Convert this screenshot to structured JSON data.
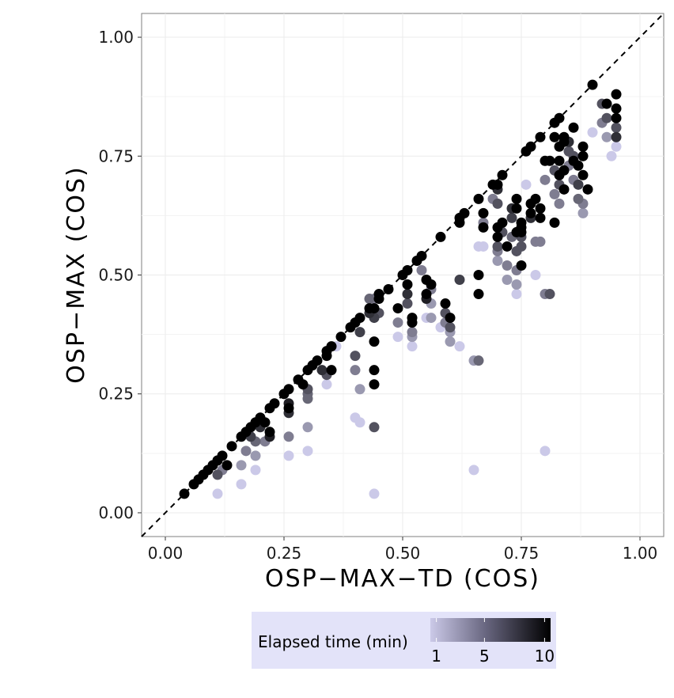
{
  "chart_data": {
    "type": "scatter",
    "xlabel": "OSP−MAX−TD (COS)",
    "ylabel": "OSP−MAX (COS)",
    "xlim": [
      -0.05,
      1.05
    ],
    "ylim": [
      -0.05,
      1.05
    ],
    "x_ticks": [
      "0.00",
      "0.25",
      "0.50",
      "0.75",
      "1.00"
    ],
    "y_ticks": [
      "0.00",
      "0.25",
      "0.50",
      "0.75",
      "1.00"
    ],
    "x_tick_values": [
      0,
      0.25,
      0.5,
      0.75,
      1.0
    ],
    "y_tick_values": [
      0,
      0.25,
      0.5,
      0.75,
      1.0
    ],
    "grid": true,
    "reference_line": "y = x (dashed)",
    "legend": {
      "title": "Elapsed time (min)",
      "position": "bottom",
      "ticks": [
        "1",
        "5",
        "10"
      ],
      "tick_values": [
        1,
        5,
        10
      ],
      "range": [
        0.5,
        10.5
      ],
      "color_low": "#cbc9e8",
      "color_high": "#000000",
      "background": "#e3e3f9"
    },
    "colors": {
      "low": "#cbc9e8",
      "high": "#000000",
      "panel_border": "#7f7f7f",
      "grid": "#ebebeb"
    },
    "points_format": "[x, y, elapsed_time_min]",
    "points": [
      [
        0.04,
        0.04,
        10
      ],
      [
        0.06,
        0.06,
        10
      ],
      [
        0.07,
        0.07,
        10
      ],
      [
        0.08,
        0.08,
        10
      ],
      [
        0.09,
        0.09,
        10
      ],
      [
        0.1,
        0.1,
        10
      ],
      [
        0.11,
        0.11,
        10
      ],
      [
        0.12,
        0.12,
        10
      ],
      [
        0.13,
        0.1,
        10
      ],
      [
        0.11,
        0.08,
        5
      ],
      [
        0.12,
        0.09,
        3
      ],
      [
        0.11,
        0.04,
        1
      ],
      [
        0.14,
        0.14,
        10
      ],
      [
        0.16,
        0.16,
        10
      ],
      [
        0.17,
        0.17,
        10
      ],
      [
        0.18,
        0.18,
        10
      ],
      [
        0.19,
        0.19,
        10
      ],
      [
        0.2,
        0.2,
        10
      ],
      [
        0.21,
        0.19,
        10
      ],
      [
        0.22,
        0.22,
        10
      ],
      [
        0.23,
        0.23,
        10
      ],
      [
        0.18,
        0.16,
        6
      ],
      [
        0.2,
        0.18,
        7
      ],
      [
        0.22,
        0.17,
        10
      ],
      [
        0.22,
        0.16,
        8
      ],
      [
        0.21,
        0.15,
        3
      ],
      [
        0.19,
        0.15,
        4
      ],
      [
        0.17,
        0.13,
        3
      ],
      [
        0.19,
        0.12,
        2
      ],
      [
        0.16,
        0.1,
        2
      ],
      [
        0.19,
        0.09,
        1
      ],
      [
        0.16,
        0.06,
        1
      ],
      [
        0.25,
        0.25,
        10
      ],
      [
        0.26,
        0.26,
        10
      ],
      [
        0.26,
        0.23,
        8
      ],
      [
        0.26,
        0.22,
        10
      ],
      [
        0.26,
        0.21,
        7
      ],
      [
        0.26,
        0.16,
        3
      ],
      [
        0.26,
        0.12,
        1
      ],
      [
        0.28,
        0.28,
        10
      ],
      [
        0.29,
        0.27,
        10
      ],
      [
        0.3,
        0.3,
        10
      ],
      [
        0.3,
        0.26,
        5
      ],
      [
        0.3,
        0.25,
        4
      ],
      [
        0.3,
        0.24,
        4
      ],
      [
        0.3,
        0.18,
        2
      ],
      [
        0.3,
        0.13,
        1
      ],
      [
        0.31,
        0.31,
        10
      ],
      [
        0.32,
        0.32,
        10
      ],
      [
        0.33,
        0.3,
        7
      ],
      [
        0.34,
        0.34,
        10
      ],
      [
        0.34,
        0.33,
        10
      ],
      [
        0.34,
        0.29,
        5
      ],
      [
        0.34,
        0.27,
        1
      ],
      [
        0.35,
        0.35,
        10
      ],
      [
        0.35,
        0.3,
        10
      ],
      [
        0.37,
        0.37,
        10
      ],
      [
        0.36,
        0.35,
        1
      ],
      [
        0.39,
        0.39,
        10
      ],
      [
        0.4,
        0.4,
        10
      ],
      [
        0.41,
        0.41,
        10
      ],
      [
        0.41,
        0.38,
        6
      ],
      [
        0.4,
        0.33,
        5
      ],
      [
        0.4,
        0.3,
        3
      ],
      [
        0.41,
        0.26,
        2
      ],
      [
        0.4,
        0.2,
        1
      ],
      [
        0.41,
        0.19,
        1
      ],
      [
        0.43,
        0.43,
        10
      ],
      [
        0.43,
        0.45,
        4
      ],
      [
        0.43,
        0.42,
        7
      ],
      [
        0.44,
        0.45,
        3
      ],
      [
        0.44,
        0.43,
        10
      ],
      [
        0.44,
        0.41,
        6
      ],
      [
        0.44,
        0.36,
        10
      ],
      [
        0.44,
        0.3,
        10
      ],
      [
        0.44,
        0.27,
        10
      ],
      [
        0.44,
        0.18,
        5
      ],
      [
        0.44,
        0.04,
        1
      ],
      [
        0.45,
        0.45,
        10
      ],
      [
        0.45,
        0.46,
        10
      ],
      [
        0.45,
        0.42,
        5
      ],
      [
        0.47,
        0.47,
        10
      ],
      [
        0.49,
        0.43,
        10
      ],
      [
        0.49,
        0.4,
        3
      ],
      [
        0.49,
        0.37,
        1
      ],
      [
        0.5,
        0.5,
        10
      ],
      [
        0.51,
        0.51,
        10
      ],
      [
        0.51,
        0.48,
        10
      ],
      [
        0.51,
        0.46,
        7
      ],
      [
        0.51,
        0.44,
        5
      ],
      [
        0.52,
        0.41,
        10
      ],
      [
        0.52,
        0.4,
        10
      ],
      [
        0.52,
        0.38,
        3
      ],
      [
        0.52,
        0.37,
        2
      ],
      [
        0.52,
        0.35,
        1
      ],
      [
        0.53,
        0.53,
        10
      ],
      [
        0.54,
        0.54,
        10
      ],
      [
        0.54,
        0.51,
        3
      ],
      [
        0.55,
        0.49,
        10
      ],
      [
        0.55,
        0.46,
        10
      ],
      [
        0.55,
        0.45,
        8
      ],
      [
        0.55,
        0.41,
        1
      ],
      [
        0.56,
        0.48,
        10
      ],
      [
        0.56,
        0.47,
        3
      ],
      [
        0.56,
        0.44,
        2
      ],
      [
        0.56,
        0.41,
        2
      ],
      [
        0.58,
        0.58,
        10
      ],
      [
        0.58,
        0.39,
        1
      ],
      [
        0.59,
        0.44,
        10
      ],
      [
        0.59,
        0.42,
        5
      ],
      [
        0.59,
        0.4,
        3
      ],
      [
        0.6,
        0.41,
        10
      ],
      [
        0.6,
        0.39,
        5
      ],
      [
        0.6,
        0.38,
        2
      ],
      [
        0.6,
        0.36,
        2
      ],
      [
        0.62,
        0.61,
        10
      ],
      [
        0.62,
        0.62,
        10
      ],
      [
        0.62,
        0.49,
        6
      ],
      [
        0.62,
        0.35,
        1
      ],
      [
        0.63,
        0.63,
        10
      ],
      [
        0.65,
        0.32,
        2
      ],
      [
        0.65,
        0.09,
        1
      ],
      [
        0.66,
        0.66,
        10
      ],
      [
        0.66,
        0.5,
        10
      ],
      [
        0.66,
        0.46,
        10
      ],
      [
        0.66,
        0.56,
        1
      ],
      [
        0.66,
        0.32,
        4
      ],
      [
        0.67,
        0.63,
        10
      ],
      [
        0.67,
        0.6,
        10
      ],
      [
        0.67,
        0.56,
        1
      ],
      [
        0.67,
        0.61,
        3
      ],
      [
        0.69,
        0.69,
        10
      ],
      [
        0.69,
        0.66,
        3
      ],
      [
        0.7,
        0.69,
        10
      ],
      [
        0.7,
        0.68,
        7
      ],
      [
        0.7,
        0.65,
        5
      ],
      [
        0.7,
        0.6,
        10
      ],
      [
        0.7,
        0.58,
        10
      ],
      [
        0.7,
        0.56,
        5
      ],
      [
        0.7,
        0.55,
        3
      ],
      [
        0.7,
        0.53,
        2
      ],
      [
        0.71,
        0.71,
        10
      ],
      [
        0.71,
        0.61,
        10
      ],
      [
        0.71,
        0.59,
        5
      ],
      [
        0.72,
        0.56,
        10
      ],
      [
        0.72,
        0.52,
        3
      ],
      [
        0.72,
        0.49,
        2
      ],
      [
        0.73,
        0.64,
        7
      ],
      [
        0.73,
        0.62,
        6
      ],
      [
        0.73,
        0.58,
        4
      ],
      [
        0.74,
        0.66,
        10
      ],
      [
        0.74,
        0.64,
        10
      ],
      [
        0.74,
        0.59,
        10
      ],
      [
        0.74,
        0.55,
        5
      ],
      [
        0.74,
        0.51,
        3
      ],
      [
        0.74,
        0.48,
        2
      ],
      [
        0.74,
        0.46,
        1
      ],
      [
        0.75,
        0.61,
        10
      ],
      [
        0.75,
        0.6,
        10
      ],
      [
        0.75,
        0.59,
        10
      ],
      [
        0.75,
        0.58,
        5
      ],
      [
        0.75,
        0.56,
        5
      ],
      [
        0.75,
        0.52,
        10
      ],
      [
        0.76,
        0.76,
        10
      ],
      [
        0.76,
        0.69,
        1
      ],
      [
        0.77,
        0.77,
        10
      ],
      [
        0.77,
        0.65,
        10
      ],
      [
        0.77,
        0.63,
        10
      ],
      [
        0.77,
        0.62,
        7
      ],
      [
        0.78,
        0.66,
        10
      ],
      [
        0.78,
        0.57,
        3
      ],
      [
        0.78,
        0.5,
        1
      ],
      [
        0.79,
        0.79,
        10
      ],
      [
        0.79,
        0.64,
        10
      ],
      [
        0.79,
        0.62,
        10
      ],
      [
        0.79,
        0.57,
        3
      ],
      [
        0.8,
        0.74,
        10
      ],
      [
        0.8,
        0.7,
        3
      ],
      [
        0.8,
        0.46,
        3
      ],
      [
        0.8,
        0.13,
        1
      ],
      [
        0.81,
        0.74,
        10
      ],
      [
        0.81,
        0.46,
        5
      ],
      [
        0.82,
        0.82,
        10
      ],
      [
        0.82,
        0.79,
        10
      ],
      [
        0.82,
        0.72,
        5
      ],
      [
        0.82,
        0.67,
        3
      ],
      [
        0.82,
        0.61,
        10
      ],
      [
        0.83,
        0.83,
        10
      ],
      [
        0.83,
        0.77,
        10
      ],
      [
        0.83,
        0.74,
        10
      ],
      [
        0.83,
        0.71,
        10
      ],
      [
        0.83,
        0.69,
        5
      ],
      [
        0.83,
        0.65,
        3
      ],
      [
        0.84,
        0.79,
        10
      ],
      [
        0.84,
        0.78,
        10
      ],
      [
        0.84,
        0.72,
        10
      ],
      [
        0.84,
        0.68,
        10
      ],
      [
        0.85,
        0.78,
        7
      ],
      [
        0.85,
        0.76,
        5
      ],
      [
        0.85,
        0.73,
        3
      ],
      [
        0.86,
        0.81,
        10
      ],
      [
        0.86,
        0.75,
        5
      ],
      [
        0.86,
        0.7,
        3
      ],
      [
        0.86,
        0.74,
        10
      ],
      [
        0.87,
        0.73,
        10
      ],
      [
        0.87,
        0.69,
        6
      ],
      [
        0.87,
        0.66,
        4
      ],
      [
        0.88,
        0.77,
        10
      ],
      [
        0.88,
        0.75,
        10
      ],
      [
        0.88,
        0.71,
        10
      ],
      [
        0.88,
        0.65,
        3
      ],
      [
        0.88,
        0.63,
        2
      ],
      [
        0.89,
        0.68,
        10
      ],
      [
        0.9,
        0.9,
        10
      ],
      [
        0.9,
        0.8,
        1
      ],
      [
        0.92,
        0.86,
        5
      ],
      [
        0.92,
        0.82,
        3
      ],
      [
        0.93,
        0.86,
        10
      ],
      [
        0.93,
        0.83,
        5
      ],
      [
        0.93,
        0.79,
        2
      ],
      [
        0.94,
        0.75,
        1
      ],
      [
        0.95,
        0.88,
        10
      ],
      [
        0.95,
        0.85,
        10
      ],
      [
        0.95,
        0.83,
        10
      ],
      [
        0.95,
        0.81,
        5
      ],
      [
        0.95,
        0.79,
        7
      ],
      [
        0.95,
        0.77,
        1
      ]
    ]
  }
}
